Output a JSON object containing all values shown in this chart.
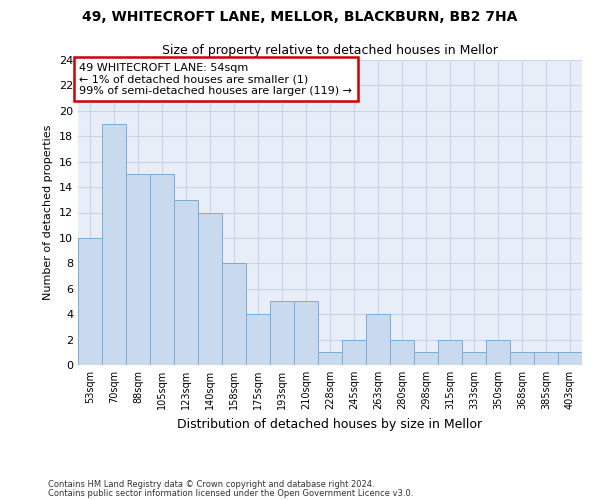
{
  "title1": "49, WHITECROFT LANE, MELLOR, BLACKBURN, BB2 7HA",
  "title2": "Size of property relative to detached houses in Mellor",
  "xlabel": "Distribution of detached houses by size in Mellor",
  "ylabel": "Number of detached properties",
  "categories": [
    "53sqm",
    "70sqm",
    "88sqm",
    "105sqm",
    "123sqm",
    "140sqm",
    "158sqm",
    "175sqm",
    "193sqm",
    "210sqm",
    "228sqm",
    "245sqm",
    "263sqm",
    "280sqm",
    "298sqm",
    "315sqm",
    "333sqm",
    "350sqm",
    "368sqm",
    "385sqm",
    "403sqm"
  ],
  "values": [
    10,
    19,
    15,
    15,
    13,
    12,
    8,
    4,
    5,
    5,
    1,
    2,
    4,
    2,
    1,
    2,
    1,
    2,
    1,
    1,
    1
  ],
  "bar_color": "#c9d9ee",
  "bar_edge_color": "#7aadd4",
  "ylim": [
    0,
    24
  ],
  "yticks": [
    0,
    2,
    4,
    6,
    8,
    10,
    12,
    14,
    16,
    18,
    20,
    22,
    24
  ],
  "annotation_line1": "49 WHITECROFT LANE: 54sqm",
  "annotation_line2": "← 1% of detached houses are smaller (1)",
  "annotation_line3": "99% of semi-detached houses are larger (119) →",
  "annotation_box_color": "#ffffff",
  "annotation_box_edge": "#cc0000",
  "footnote1": "Contains HM Land Registry data © Crown copyright and database right 2024.",
  "footnote2": "Contains public sector information licensed under the Open Government Licence v3.0.",
  "grid_color": "#c8d4e8",
  "background_color": "#e8eef8",
  "fig_bg": "#ffffff"
}
